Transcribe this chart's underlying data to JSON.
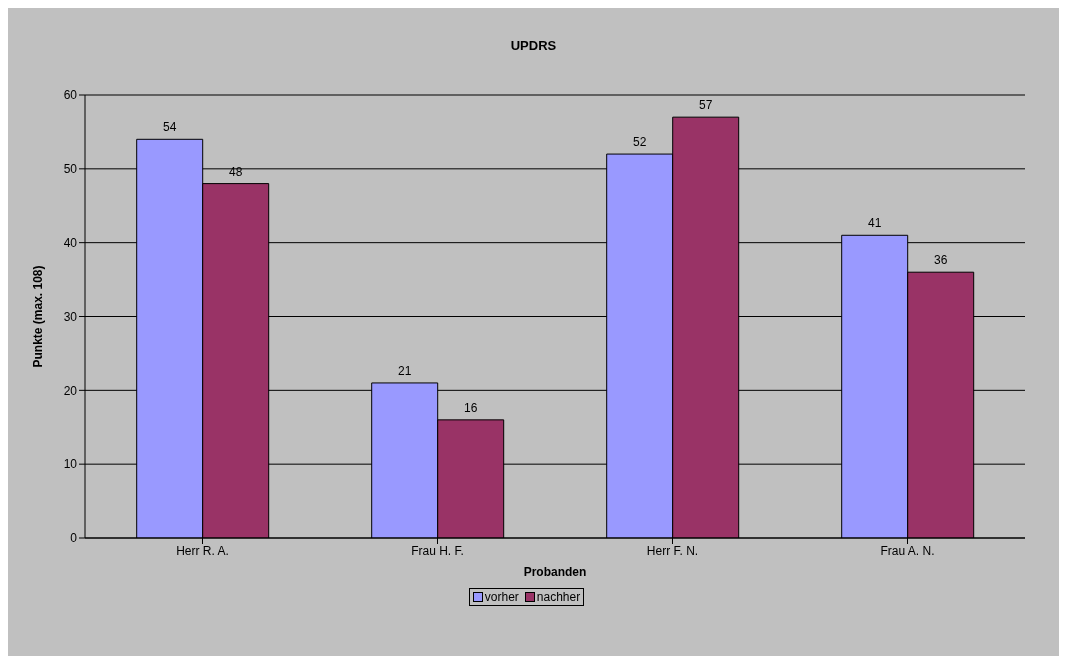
{
  "chart_data": {
    "type": "bar",
    "title": "UPDRS",
    "xlabel": "Probanden",
    "ylabel": "Punkte (max. 108)",
    "categories": [
      "Herr R. A.",
      "Frau H. F.",
      "Herr F. N.",
      "Frau A. N."
    ],
    "series": [
      {
        "name": "vorher",
        "color": "#9999ff",
        "values": [
          54,
          21,
          52,
          41
        ]
      },
      {
        "name": "nachher",
        "color": "#993366",
        "values": [
          48,
          16,
          57,
          36
        ]
      }
    ],
    "ylim": [
      0,
      60
    ],
    "yticks": [
      0,
      10,
      20,
      30,
      40,
      50,
      60
    ],
    "grid": "y",
    "legend": "bottom",
    "data_labels": true
  }
}
